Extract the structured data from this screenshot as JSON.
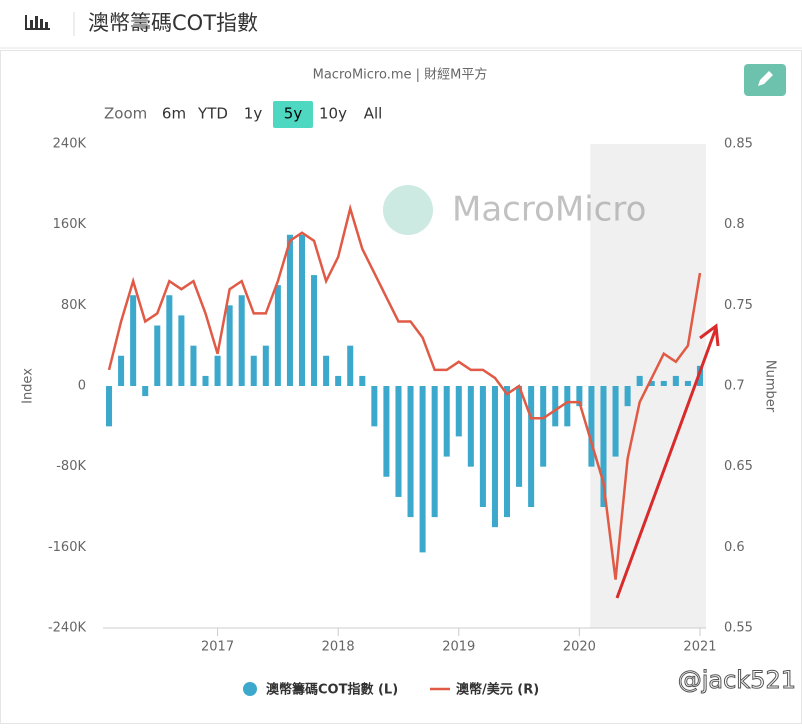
{
  "header": {
    "title": "澳幣籌碼COT指數"
  },
  "range_selector": {
    "label": "Zoom",
    "buttons": [
      "6m",
      "YTD",
      "1y",
      "5y",
      "10y",
      "All"
    ],
    "selected": 3
  },
  "watermark_user": "@jack521",
  "chart_data": {
    "type": "combo",
    "source": "MacroMicro.me | 財經M平方",
    "watermark": "MacroMicro",
    "y_label": "Index",
    "y2_label": "Number",
    "xlim": [
      2016.05,
      2021.05
    ],
    "xticks": [
      2017,
      2018,
      2019,
      2020,
      2021
    ],
    "ylim": [
      -240000,
      240000
    ],
    "yticks": [
      {
        "value": 240000,
        "label": "240K"
      },
      {
        "value": 160000,
        "label": "160K"
      },
      {
        "value": 80000,
        "label": "80K"
      },
      0,
      {
        "value": -80000,
        "label": "-80K"
      },
      {
        "value": -160000,
        "label": "-160K"
      },
      {
        "value": -240000,
        "label": "-240K"
      }
    ],
    "y2lim": [
      0.55,
      0.85
    ],
    "y2ticks": [
      0.85,
      0.8,
      0.75,
      0.7,
      0.65,
      0.6,
      0.55
    ],
    "highlight_xrange": [
      2020.09,
      2021.05
    ],
    "x": [
      2016.1,
      2016.2,
      2016.3,
      2016.4,
      2016.5,
      2016.6,
      2016.7,
      2016.8,
      2016.9,
      2017.0,
      2017.1,
      2017.2,
      2017.3,
      2017.4,
      2017.5,
      2017.6,
      2017.7,
      2017.8,
      2017.9,
      2018.0,
      2018.1,
      2018.2,
      2018.3,
      2018.4,
      2018.5,
      2018.6,
      2018.7,
      2018.8,
      2018.9,
      2019.0,
      2019.1,
      2019.2,
      2019.3,
      2019.4,
      2019.5,
      2019.6,
      2019.7,
      2019.8,
      2019.9,
      2020.0,
      2020.1,
      2020.2,
      2020.3,
      2020.4,
      2020.5,
      2020.6,
      2020.7,
      2020.8,
      2020.9,
      2021.0
    ],
    "series": [
      {
        "name": "澳幣籌碼COT指數 (L)",
        "type": "bar",
        "color": "#3ba8cc",
        "values": [
          -40000,
          30000,
          90000,
          -10000,
          60000,
          90000,
          70000,
          40000,
          10000,
          30000,
          80000,
          90000,
          30000,
          40000,
          100000,
          150000,
          150000,
          110000,
          30000,
          10000,
          40000,
          10000,
          -40000,
          -90000,
          -110000,
          -130000,
          -165000,
          -130000,
          -70000,
          -50000,
          -80000,
          -120000,
          -140000,
          -130000,
          -100000,
          -120000,
          -80000,
          -40000,
          -40000,
          -20000,
          -80000,
          -120000,
          -70000,
          -20000,
          10000,
          5000,
          5000,
          10000,
          5000,
          20000
        ]
      },
      {
        "name": "澳幣/美元 (R)",
        "type": "line",
        "axis": "y2",
        "color": "#e05a45",
        "values": [
          0.71,
          0.74,
          0.765,
          0.74,
          0.745,
          0.765,
          0.76,
          0.765,
          0.745,
          0.72,
          0.76,
          0.765,
          0.745,
          0.745,
          0.765,
          0.79,
          0.795,
          0.79,
          0.765,
          0.78,
          0.81,
          0.785,
          0.77,
          0.755,
          0.74,
          0.74,
          0.73,
          0.71,
          0.71,
          0.715,
          0.71,
          0.71,
          0.705,
          0.695,
          0.7,
          0.68,
          0.68,
          0.685,
          0.69,
          0.69,
          0.665,
          0.64,
          0.58,
          0.655,
          0.69,
          0.705,
          0.72,
          0.715,
          0.725,
          0.77
        ]
      }
    ]
  }
}
